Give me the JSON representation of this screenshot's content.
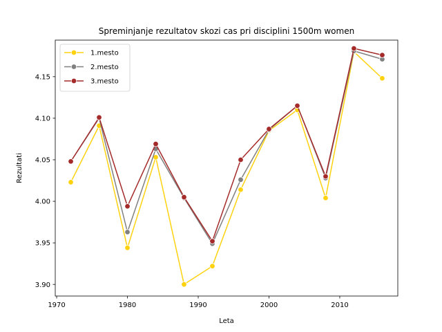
{
  "chart_data": {
    "type": "line",
    "title": "Spreminjanje rezultatov skozi cas pri disciplini 1500m women",
    "xlabel": "Leta",
    "ylabel": "Rezultati",
    "xlim": [
      1969.8,
      2018.2
    ],
    "ylim": [
      3.886,
      4.194
    ],
    "xticks": [
      1970,
      1980,
      1990,
      2000,
      2010
    ],
    "xtick_labels": [
      "1970",
      "1980",
      "1990",
      "2000",
      "2010"
    ],
    "yticks": [
      3.9,
      3.95,
      4.0,
      4.05,
      4.1,
      4.15
    ],
    "ytick_labels": [
      "3.90",
      "3.95",
      "4.00",
      "4.05",
      "4.10",
      "4.15"
    ],
    "grid": false,
    "legend_position": "top-left",
    "x": [
      1972,
      1976,
      1980,
      1984,
      1988,
      1992,
      1996,
      2000,
      2004,
      2008,
      2012,
      2016
    ],
    "series": [
      {
        "name": "1.mesto",
        "color": "#fed20e",
        "values": [
          4.023,
          4.091,
          3.944,
          4.053,
          3.9,
          3.922,
          4.014,
          4.085,
          4.11,
          4.004,
          4.18,
          4.148
        ]
      },
      {
        "name": "2.mesto",
        "color": "#808080",
        "values": [
          4.048,
          4.1,
          3.963,
          4.063,
          4.004,
          3.949,
          4.026,
          4.086,
          4.115,
          4.028,
          4.181,
          4.171
        ]
      },
      {
        "name": "3.mesto",
        "color": "#a52a2a",
        "values": [
          4.048,
          4.101,
          3.994,
          4.069,
          4.005,
          3.952,
          4.05,
          4.087,
          4.115,
          4.03,
          4.184,
          4.176
        ]
      }
    ]
  }
}
